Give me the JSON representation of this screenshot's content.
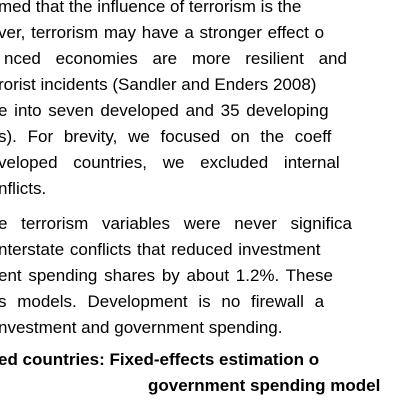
{
  "document": {
    "paragraph_1": [
      "med that the influence of terrorism is the",
      "ver, terrorism may have a stronger effect o",
      "nced economies are more resilient and",
      "rorist incidents (Sandler and Enders 2008)",
      "e into seven developed and 35 developing",
      "s). For brevity, we focused on the coeff",
      "veloped countries, we excluded internal",
      "nflicts."
    ],
    "paragraph_2": [
      "e terrorism variables were never significa",
      "nterstate conflicts that reduced investment",
      "ent spending shares by about 1.2%. These",
      "s models. Development is no firewall a",
      "nvestment and government spending."
    ],
    "table_caption": [
      "ed countries: Fixed-effects estimation o",
      "government spending model"
    ]
  }
}
